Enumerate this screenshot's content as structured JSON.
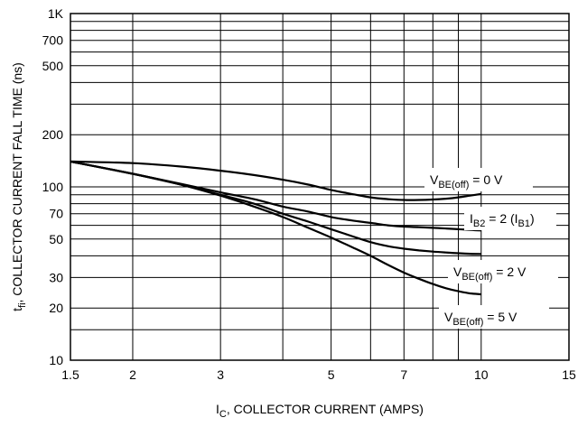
{
  "chart_data": {
    "type": "line",
    "title": "",
    "xlabel": {
      "main": "I",
      "sub": "C",
      "rest": ", COLLECTOR CURRENT (AMPS)"
    },
    "ylabel": {
      "main": "t",
      "sub": "fi",
      "rest": ", COLLECTOR CURRENT FALL TIME (ns)"
    },
    "x_scale": "log",
    "y_scale": "log",
    "xlim": [
      1.5,
      15
    ],
    "ylim": [
      10,
      1000
    ],
    "grid": true,
    "x_ticks": [
      {
        "value": 1.5,
        "label": "1.5"
      },
      {
        "value": 2,
        "label": "2"
      },
      {
        "value": 3,
        "label": "3"
      },
      {
        "value": 5,
        "label": "5"
      },
      {
        "value": 7,
        "label": "7"
      },
      {
        "value": 10,
        "label": "10"
      },
      {
        "value": 15,
        "label": "15"
      }
    ],
    "x_minor_grid": [
      4,
      6,
      8,
      9
    ],
    "y_ticks": [
      {
        "value": 10,
        "label": "10"
      },
      {
        "value": 20,
        "label": "20"
      },
      {
        "value": 30,
        "label": "30"
      },
      {
        "value": 50,
        "label": "50"
      },
      {
        "value": 70,
        "label": "70"
      },
      {
        "value": 100,
        "label": "100"
      },
      {
        "value": 200,
        "label": "200"
      },
      {
        "value": 500,
        "label": "500"
      },
      {
        "value": 700,
        "label": "700"
      },
      {
        "value": 1000,
        "label": "1K"
      }
    ],
    "y_minor_grid": [
      15,
      40,
      60,
      80,
      90,
      300,
      400,
      600,
      800,
      900
    ],
    "series": [
      {
        "name": "V_BE(off) = 0 V",
        "x": [
          1.5,
          2,
          2.5,
          3,
          3.5,
          4,
          4.5,
          5,
          5.5,
          6,
          6.5,
          7,
          7.5,
          8,
          8.5,
          9,
          9.5,
          10
        ],
        "y": [
          140,
          137,
          131,
          124,
          117,
          110,
          103,
          96,
          91,
          87,
          85,
          84,
          84,
          84.5,
          85.5,
          87,
          89,
          91
        ]
      },
      {
        "name": "I_B2 = 2 (I_B1)",
        "x": [
          1.5,
          2,
          2.5,
          3,
          3.5,
          4,
          4.5,
          5,
          5.5,
          6,
          6.5,
          7,
          7.5,
          8,
          8.5,
          9,
          9.5,
          10
        ],
        "y": [
          140,
          119,
          104,
          93,
          85,
          77,
          72,
          67,
          64,
          62,
          60,
          59,
          58.5,
          58,
          57.5,
          57,
          56.5,
          56
        ]
      },
      {
        "name": "V_BE(off) = 2 V",
        "x": [
          1.5,
          2,
          2.5,
          3,
          3.5,
          4,
          4.5,
          5,
          5.5,
          6,
          6.5,
          7,
          7.5,
          8,
          8.5,
          9,
          9.5,
          10
        ],
        "y": [
          140,
          119,
          103,
          90,
          80,
          70,
          63,
          57,
          52,
          48,
          45.5,
          44,
          43,
          42.3,
          41.8,
          41.4,
          41.1,
          41
        ]
      },
      {
        "name": "V_BE(off) = 5 V",
        "x": [
          1.5,
          2,
          2.5,
          3,
          3.5,
          4,
          4.5,
          5,
          5.5,
          6,
          6.5,
          7,
          7.5,
          8,
          8.5,
          9,
          9.5,
          10
        ],
        "y": [
          140,
          119,
          103,
          89,
          77,
          67,
          58,
          51,
          45,
          40,
          35.5,
          32,
          29.5,
          27.5,
          26,
          25,
          24.3,
          24
        ]
      }
    ],
    "annotations": [
      {
        "series": 0,
        "main": "V",
        "sub": "BE(off)",
        "rest": " = 0 V"
      },
      {
        "series": 1,
        "parts": [
          [
            "I",
            "B2",
            " = 2 ("
          ],
          [
            "I",
            "B1",
            ")"
          ]
        ]
      },
      {
        "series": 2,
        "main": "V",
        "sub": "BE(off)",
        "rest": " = 2 V"
      },
      {
        "series": 3,
        "main": "V",
        "sub": "BE(off)",
        "rest": " = 5 V"
      }
    ]
  }
}
